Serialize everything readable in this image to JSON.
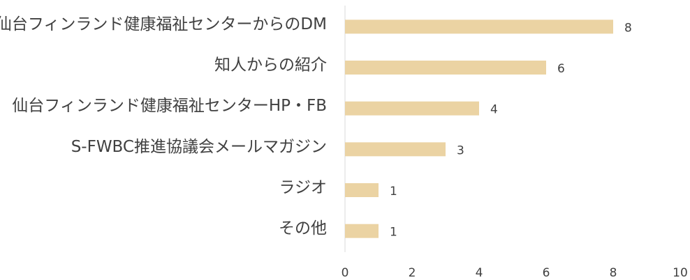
{
  "chart_data": {
    "type": "bar",
    "orientation": "horizontal",
    "categories": [
      "仙台フィンランド健康福祉センターからのDM",
      "知人からの紹介",
      "仙台フィンランド健康福祉センターHP・FB",
      "S-FWBC推進協議会メールマガジン",
      "ラジオ",
      "その他"
    ],
    "values": [
      8,
      6,
      4,
      3,
      1,
      1
    ],
    "color": "#ebd3a3",
    "xlim": [
      0,
      10
    ],
    "xticks": [
      0,
      2,
      4,
      6,
      8,
      10
    ],
    "grid": false
  }
}
